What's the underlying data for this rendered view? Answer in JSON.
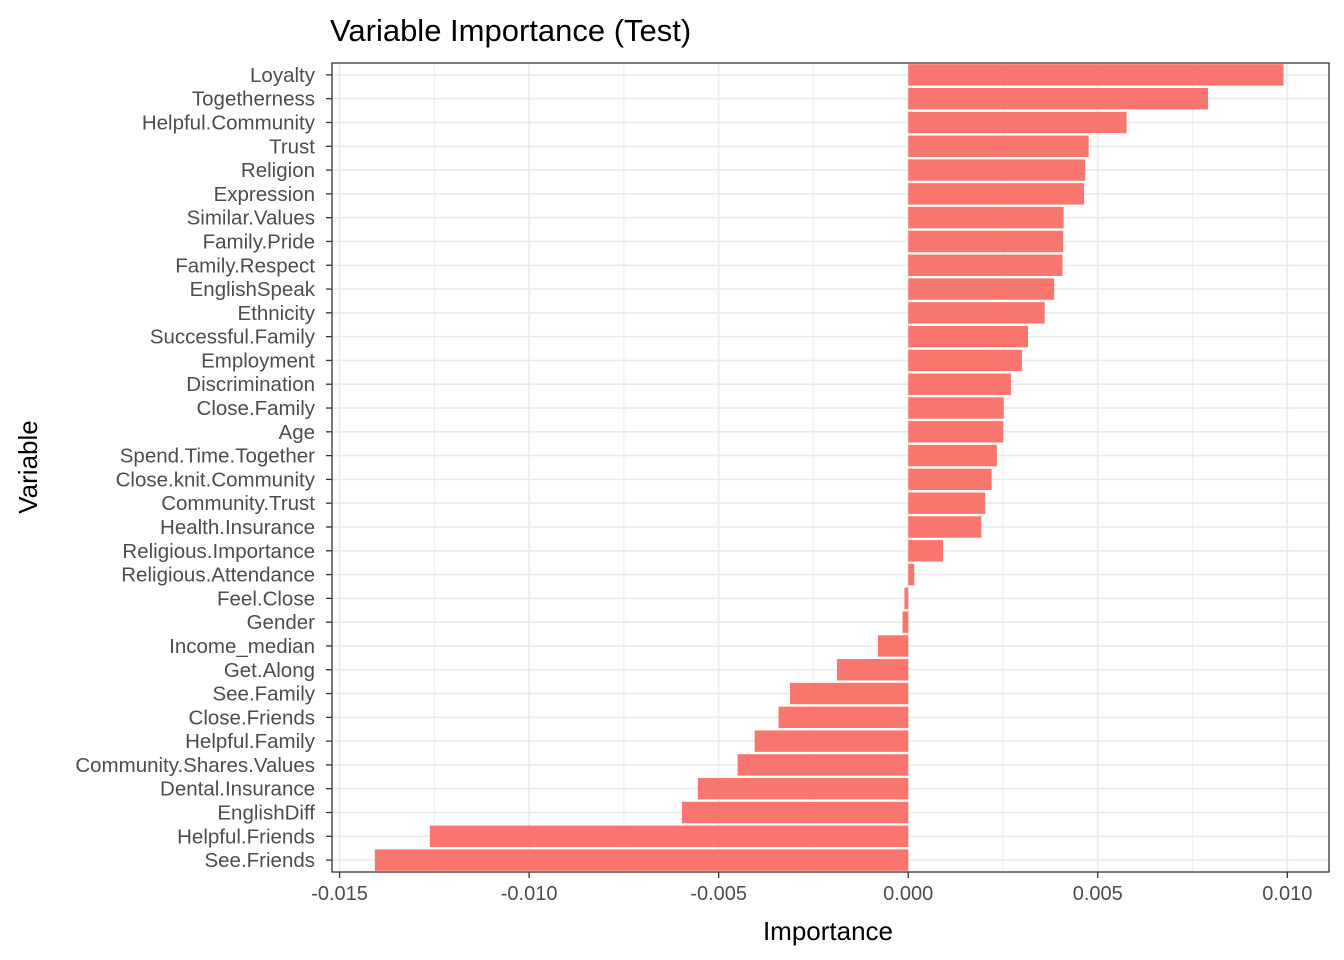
{
  "chart_data": {
    "type": "bar",
    "orientation": "horizontal",
    "title": "Variable Importance (Test)",
    "xlabel": "Importance",
    "ylabel": "Variable",
    "xlim": [
      -0.0152,
      0.0111
    ],
    "xticks": [
      -0.015,
      -0.01,
      -0.005,
      0.0,
      0.005,
      0.01
    ],
    "xtick_labels": [
      "-0.015",
      "-0.010",
      "-0.005",
      "0.000",
      "0.005",
      "0.010"
    ],
    "grid": true,
    "legend": "none",
    "bar_color": "#F8766D",
    "categories": [
      "Loyalty",
      "Togetherness",
      "Helpful.Community",
      "Trust",
      "Religion",
      "Expression",
      "Similar.Values",
      "Family.Pride",
      "Family.Respect",
      "EnglishSpeak",
      "Ethnicity",
      "Successful.Family",
      "Employment",
      "Discrimination",
      "Close.Family",
      "Age",
      "Spend.Time.Together",
      "Close.knit.Community",
      "Community.Trust",
      "Health.Insurance",
      "Religious.Importance",
      "Religious.Attendance",
      "Feel.Close",
      "Gender",
      "Income_median",
      "Get.Along",
      "See.Family",
      "Close.Friends",
      "Helpful.Family",
      "Community.Shares.Values",
      "Dental.Insurance",
      "EnglishDiff",
      "Helpful.Friends",
      "See.Friends"
    ],
    "values": [
      0.0099,
      0.00791,
      0.00576,
      0.00476,
      0.00467,
      0.00464,
      0.0041,
      0.00409,
      0.00407,
      0.00385,
      0.0036,
      0.00316,
      0.003,
      0.00271,
      0.00252,
      0.00251,
      0.00234,
      0.0022,
      0.00203,
      0.00193,
      0.00092,
      0.00016,
      -0.0001,
      -0.00015,
      -0.0008,
      -0.00188,
      -0.00312,
      -0.00342,
      -0.00405,
      -0.0045,
      -0.00555,
      -0.00597,
      -0.01262,
      -0.01407
    ]
  }
}
